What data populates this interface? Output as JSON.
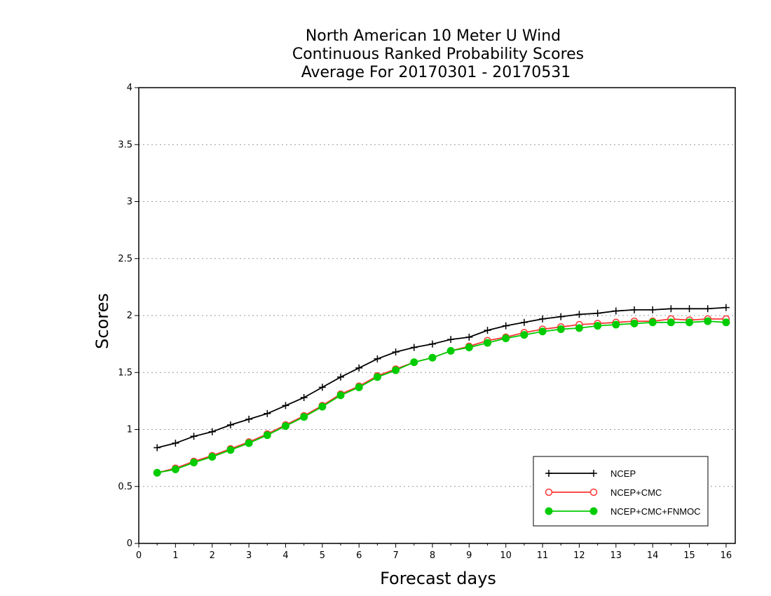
{
  "chart_data": {
    "type": "line",
    "title_lines": [
      "North American 10 Meter U Wind",
      "Continuous Ranked Probability Scores",
      "Average For 20170301 - 20170531"
    ],
    "xlabel": "Forecast days",
    "ylabel": "Scores",
    "xlim": [
      0,
      16.25
    ],
    "ylim": [
      0,
      4
    ],
    "x_ticks": [
      0,
      1,
      2,
      3,
      4,
      5,
      6,
      7,
      8,
      9,
      10,
      11,
      12,
      13,
      14,
      15,
      16
    ],
    "y_ticks": [
      0,
      0.5,
      1,
      1.5,
      2,
      2.5,
      3,
      3.5,
      4
    ],
    "y_tick_labels": [
      "0",
      "0.5",
      "1",
      "1.5",
      "2",
      "2.5",
      "3",
      "3.5",
      "4"
    ],
    "grid": "horizontal-dotted",
    "legend_position": "bottom-right",
    "x": [
      0.5,
      1,
      1.5,
      2,
      2.5,
      3,
      3.5,
      4,
      4.5,
      5,
      5.5,
      6,
      6.5,
      7,
      7.5,
      8,
      8.5,
      9,
      9.5,
      10,
      10.5,
      11,
      11.5,
      12,
      12.5,
      13,
      13.5,
      14,
      14.5,
      15,
      15.5,
      16
    ],
    "series": [
      {
        "name": "NCEP",
        "color": "#000000",
        "marker": "plus",
        "values": [
          0.84,
          0.88,
          0.94,
          0.98,
          1.04,
          1.09,
          1.14,
          1.21,
          1.28,
          1.37,
          1.46,
          1.54,
          1.62,
          1.68,
          1.72,
          1.75,
          1.79,
          1.81,
          1.87,
          1.91,
          1.94,
          1.97,
          1.99,
          2.01,
          2.02,
          2.04,
          2.05,
          2.05,
          2.06,
          2.06,
          2.06,
          2.07
        ]
      },
      {
        "name": "NCEP+CMC",
        "color": "#ff3333",
        "marker": "open-circle",
        "values": [
          0.62,
          0.66,
          0.72,
          0.77,
          0.83,
          0.89,
          0.96,
          1.04,
          1.12,
          1.21,
          1.31,
          1.38,
          1.47,
          1.53,
          1.59,
          1.63,
          1.69,
          1.73,
          1.78,
          1.81,
          1.85,
          1.88,
          1.9,
          1.92,
          1.93,
          1.94,
          1.95,
          1.95,
          1.97,
          1.96,
          1.97,
          1.97
        ]
      },
      {
        "name": "NCEP+CMC+FNMOC",
        "color": "#00cc00",
        "marker": "filled-circle",
        "values": [
          0.62,
          0.65,
          0.71,
          0.76,
          0.82,
          0.88,
          0.95,
          1.03,
          1.11,
          1.2,
          1.3,
          1.37,
          1.46,
          1.52,
          1.59,
          1.63,
          1.69,
          1.72,
          1.76,
          1.8,
          1.83,
          1.86,
          1.88,
          1.89,
          1.91,
          1.92,
          1.93,
          1.94,
          1.94,
          1.94,
          1.95,
          1.94
        ]
      }
    ]
  }
}
